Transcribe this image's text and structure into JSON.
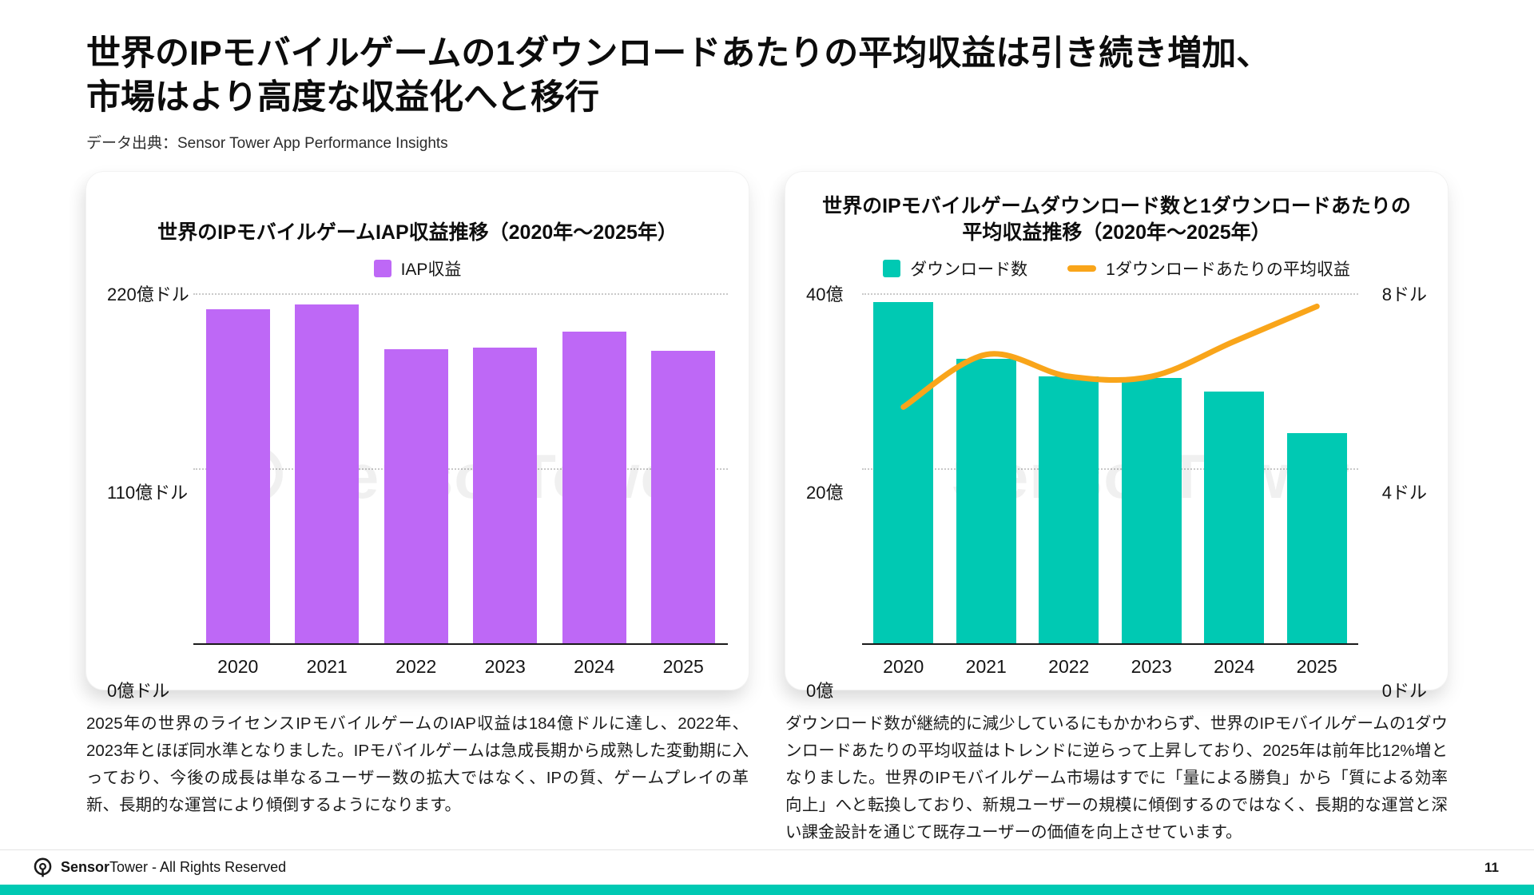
{
  "slide": {
    "title_line1": "世界のIPモバイルゲームの1ダウンロードあたりの平均収益は引き続き増加、",
    "title_line2": "市場はより高度な収益化へと移行",
    "source": "データ出典：Sensor Tower App Performance Insights",
    "watermark_text": "SensorTower"
  },
  "colors": {
    "purple": "#BE68F6",
    "teal": "#00C9B3",
    "orange": "#F9A51A",
    "strip": "#00C9B3"
  },
  "chart_data": [
    {
      "type": "bar",
      "title": "世界のIPモバイルゲームIAP収益推移（2020年〜2025年）",
      "categories": [
        "2020",
        "2021",
        "2022",
        "2023",
        "2024",
        "2025"
      ],
      "series": [
        {
          "name": "IAP収益",
          "values": [
            210,
            213,
            185,
            186,
            196,
            184
          ]
        }
      ],
      "ylabel": "億ドル",
      "ylim": [
        0,
        220
      ],
      "yticks": [
        "0億ドル",
        "110億ドル",
        "220億ドル"
      ],
      "grid": "dotted horizontal",
      "legend_position": "top"
    },
    {
      "type": "bar+line",
      "title_line1": "世界のIPモバイルゲームダウンロード数と1ダウンロードあたりの",
      "title_line2": "平均収益推移（2020年〜2025年）",
      "categories": [
        "2020",
        "2021",
        "2022",
        "2023",
        "2024",
        "2025"
      ],
      "series": [
        {
          "name": "ダウンロード数",
          "kind": "bar",
          "axis": "left",
          "values": [
            39,
            32.5,
            30.5,
            30.3,
            28.8,
            24
          ]
        },
        {
          "name": "1ダウンロードあたりの平均収益",
          "kind": "line",
          "axis": "right",
          "values": [
            5.4,
            6.6,
            6.1,
            6.1,
            6.9,
            7.7
          ]
        }
      ],
      "ylim_left": [
        0,
        40
      ],
      "ylim_right": [
        0,
        8
      ],
      "yticks_left": [
        "0億",
        "20億",
        "40億"
      ],
      "yticks_right": [
        "0ドル",
        "4ドル",
        "8ドル"
      ],
      "grid": "dotted horizontal",
      "legend_position": "top"
    }
  ],
  "notes": {
    "left": "2025年の世界のライセンスIPモバイルゲームのIAP収益は184億ドルに達し、2022年、2023年とほぼ同水準となりました。IPモバイルゲームは急成長期から成熟した変動期に入っており、今後の成長は単なるユーザー数の拡大ではなく、IPの質、ゲームプレイの革新、長期的な運営により傾倒するようになります。",
    "right": "ダウンロード数が継続的に減少しているにもかかわらず、世界のIPモバイルゲームの1ダウンロードあたりの平均収益はトレンドに逆らって上昇しており、2025年は前年比12%増となりました。世界のIPモバイルゲーム市場はすでに「量による勝負」から「質による効率向上」へと転換しており、新規ユーザーの規模に傾倒するのではなく、長期的な運営と深い課金設計を通じて既存ユーザーの価値を向上させています。"
  },
  "footer": {
    "brand_bold": "Sensor",
    "brand_regular": "Tower",
    "rights": " - All Rights Reserved",
    "page": "11"
  }
}
